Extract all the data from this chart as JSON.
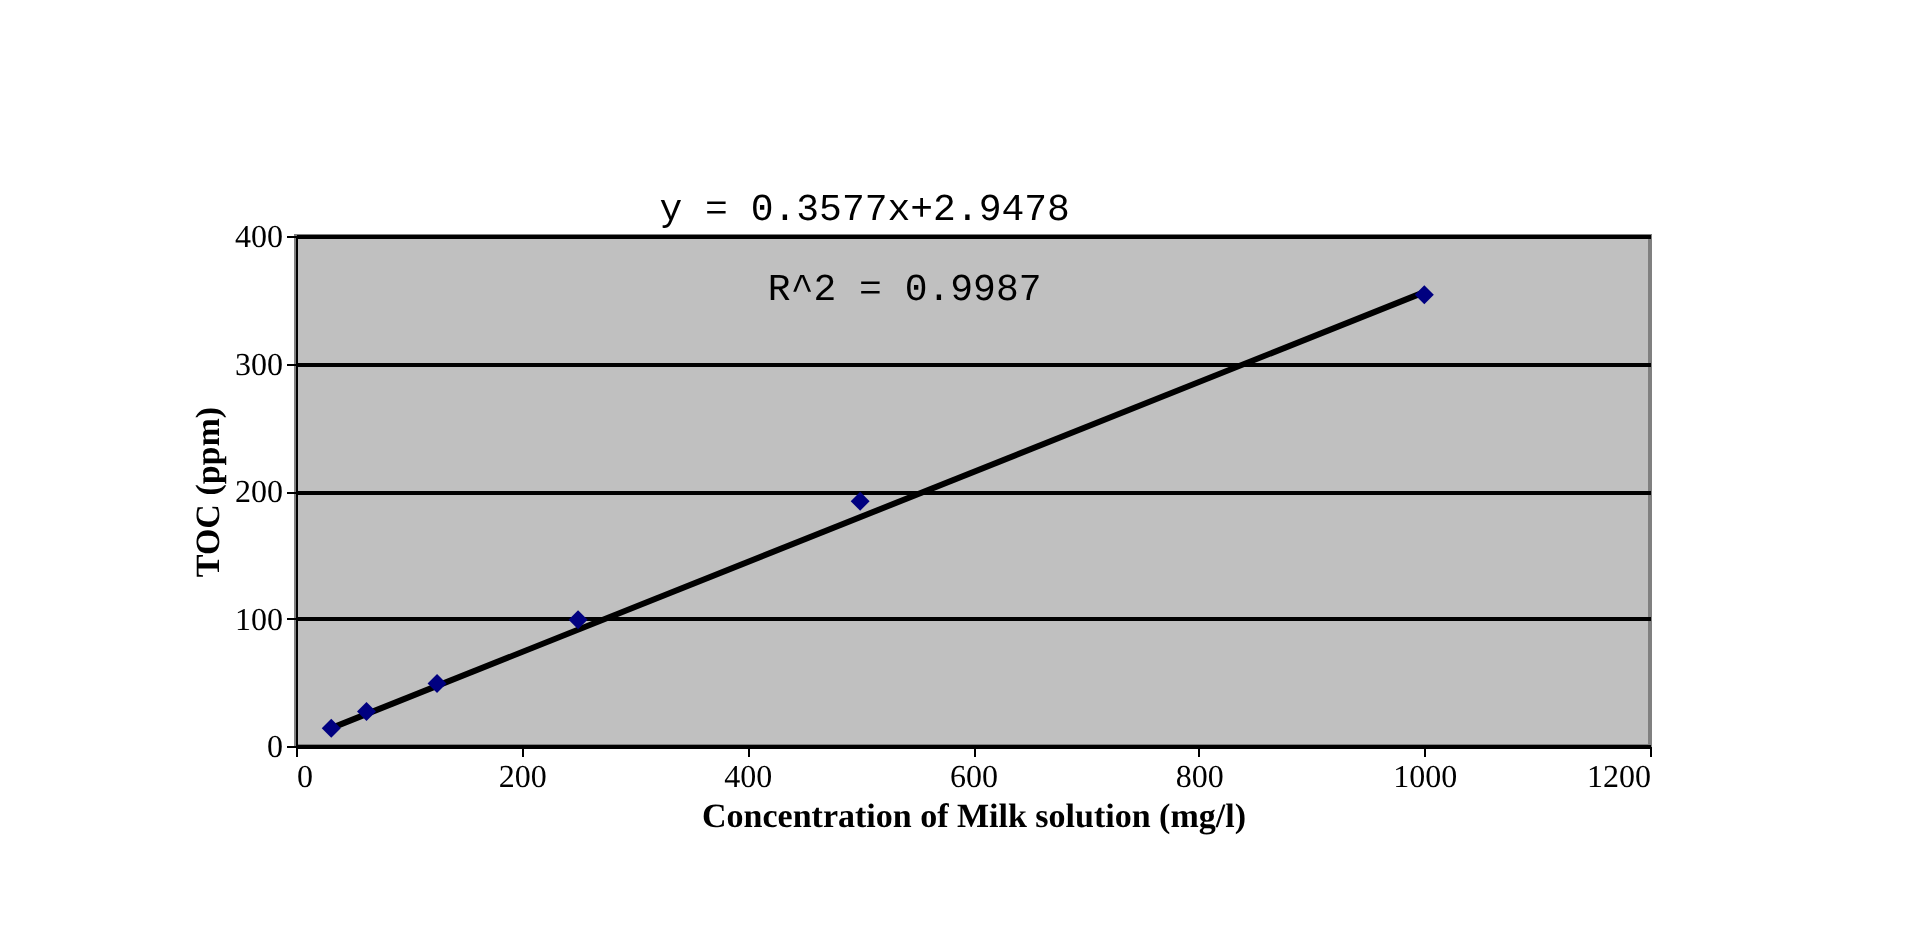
{
  "chart_data": {
    "type": "scatter",
    "xlabel": "Concentration of Milk solution (mg/l)",
    "ylabel": "TOC (ppm)",
    "annotations": [
      "y = 0.3577x+2.9478",
      "R^2 = 0.9987"
    ],
    "x": [
      31.25,
      62.5,
      125,
      250,
      500,
      1000
    ],
    "series": [
      {
        "color": "#000080",
        "marker": "diamond",
        "values": [
          14,
          27,
          49,
          99,
          192,
          354
        ]
      },
      {
        "type": "line",
        "color": "#000000",
        "marker": "none",
        "x": [
          31.25,
          1000
        ],
        "values": [
          14,
          356
        ]
      }
    ],
    "xlim": [
      0,
      1200
    ],
    "xticks": [
      0,
      200,
      400,
      600,
      800,
      1000,
      1200
    ],
    "ylim": [
      0,
      400
    ],
    "yticks": [
      0,
      100,
      200,
      300,
      400
    ],
    "grid": "y",
    "legend": false
  }
}
